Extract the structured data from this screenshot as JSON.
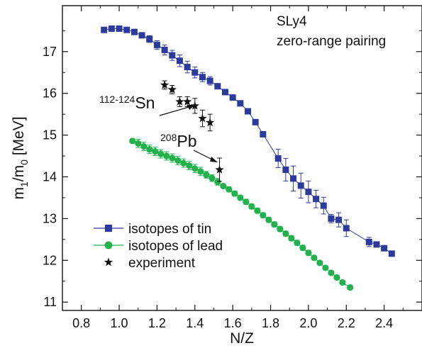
{
  "chart_data": {
    "type": "scatter",
    "xlabel": "N/Z",
    "ylabel_main": "m",
    "ylabel_sub1": "1",
    "ylabel_slash": "/m",
    "ylabel_sub0": "0",
    "ylabel_unit": " [MeV]",
    "xlim": [
      0.7,
      2.6
    ],
    "ylim": [
      10.8,
      18.1
    ],
    "xticks": [
      0.8,
      1.0,
      1.2,
      1.4,
      1.6,
      1.8,
      2.0,
      2.2,
      2.4
    ],
    "xtick_labels": [
      "0.8",
      "1.0",
      "1.2",
      "1.4",
      "1.6",
      "1.8",
      "2.0",
      "2.2",
      "2.4"
    ],
    "yticks": [
      11,
      12,
      13,
      14,
      15,
      16,
      17
    ],
    "ytick_labels": [
      "11",
      "12",
      "13",
      "14",
      "15",
      "16",
      "17"
    ],
    "annotations": {
      "model_line1": "SLy4",
      "model_line2": "zero-range pairing",
      "sn_sup": "112-124",
      "sn_label": "Sn",
      "pb_sup": "208",
      "pb_label": "Pb"
    },
    "series": [
      {
        "name": "isotopes of tin",
        "color": "#2b3a9c",
        "marker": "square",
        "points": [
          [
            0.92,
            17.52,
            0.06
          ],
          [
            0.96,
            17.55,
            0.05
          ],
          [
            1.0,
            17.55,
            0.05
          ],
          [
            1.04,
            17.52,
            0.05
          ],
          [
            1.08,
            17.47,
            0.05
          ],
          [
            1.12,
            17.39,
            0.06
          ],
          [
            1.16,
            17.3,
            0.08
          ],
          [
            1.2,
            17.16,
            0.1
          ],
          [
            1.24,
            17.04,
            0.12
          ],
          [
            1.28,
            16.91,
            0.12
          ],
          [
            1.32,
            16.78,
            0.14
          ],
          [
            1.36,
            16.63,
            0.14
          ],
          [
            1.4,
            16.5,
            0.13
          ],
          [
            1.44,
            16.39,
            0.11
          ],
          [
            1.48,
            16.3,
            0.1
          ],
          [
            1.52,
            16.17,
            0.06
          ],
          [
            1.56,
            16.03,
            0.05
          ],
          [
            1.6,
            15.9,
            0.05
          ],
          [
            1.64,
            15.76,
            0.05
          ],
          [
            1.68,
            15.57,
            0.05
          ],
          [
            1.72,
            15.31,
            0.05
          ],
          [
            1.76,
            15.02,
            0.05
          ],
          [
            1.84,
            14.44,
            0.22
          ],
          [
            1.88,
            14.17,
            0.27
          ],
          [
            1.92,
            13.96,
            0.3
          ],
          [
            1.96,
            13.79,
            0.3
          ],
          [
            2.0,
            13.64,
            0.26
          ],
          [
            2.04,
            13.47,
            0.21
          ],
          [
            2.08,
            13.31,
            0.2
          ],
          [
            2.12,
            13.0,
            0.1
          ],
          [
            2.16,
            12.97,
            0.17
          ],
          [
            2.2,
            12.77,
            0.2
          ],
          [
            2.32,
            12.44,
            0.11
          ],
          [
            2.36,
            12.38,
            0.06
          ],
          [
            2.4,
            12.29,
            0.05
          ],
          [
            2.44,
            12.16,
            0.05
          ]
        ]
      },
      {
        "name": "isotopes of lead",
        "color": "#22b14c",
        "marker": "circle",
        "points": [
          [
            1.07,
            14.86,
            0.05
          ],
          [
            1.1,
            14.8,
            0.1
          ],
          [
            1.13,
            14.73,
            0.1
          ],
          [
            1.16,
            14.66,
            0.1
          ],
          [
            1.19,
            14.61,
            0.1
          ],
          [
            1.22,
            14.55,
            0.1
          ],
          [
            1.25,
            14.5,
            0.1
          ],
          [
            1.28,
            14.45,
            0.1
          ],
          [
            1.31,
            14.39,
            0.1
          ],
          [
            1.34,
            14.33,
            0.1
          ],
          [
            1.37,
            14.27,
            0.1
          ],
          [
            1.4,
            14.2,
            0.1
          ],
          [
            1.43,
            14.13,
            0.1
          ],
          [
            1.46,
            14.05,
            0.08
          ],
          [
            1.49,
            13.97,
            0.08
          ],
          [
            1.52,
            13.88,
            0.08
          ],
          [
            1.55,
            13.78,
            0.05
          ],
          [
            1.58,
            13.7,
            0.06
          ],
          [
            1.61,
            13.6,
            0.06
          ],
          [
            1.64,
            13.5,
            0.06
          ],
          [
            1.67,
            13.4,
            0.06
          ],
          [
            1.7,
            13.29,
            0.06
          ],
          [
            1.73,
            13.19,
            0.06
          ],
          [
            1.76,
            13.08,
            0.06
          ],
          [
            1.79,
            12.97,
            0.06
          ],
          [
            1.82,
            12.86,
            0.06
          ],
          [
            1.85,
            12.75,
            0.06
          ],
          [
            1.88,
            12.64,
            0.06
          ],
          [
            1.91,
            12.53,
            0.06
          ],
          [
            1.94,
            12.42,
            0.06
          ],
          [
            1.97,
            12.3,
            0.06
          ],
          [
            2.0,
            12.18,
            0.06
          ],
          [
            2.03,
            12.06,
            0.05
          ],
          [
            2.06,
            11.94,
            0.05
          ],
          [
            2.09,
            11.82,
            0.05
          ],
          [
            2.12,
            11.7,
            0.05
          ],
          [
            2.15,
            11.59,
            0.05
          ],
          [
            2.18,
            11.47,
            0.05
          ],
          [
            2.22,
            11.35,
            0.05
          ]
        ]
      },
      {
        "name": "experiment",
        "color": "#111111",
        "marker": "star",
        "points": [
          [
            1.24,
            16.2,
            0.1
          ],
          [
            1.28,
            16.09,
            0.1
          ],
          [
            1.32,
            15.8,
            0.12
          ],
          [
            1.36,
            15.8,
            0.12
          ],
          [
            1.4,
            15.7,
            0.18
          ],
          [
            1.44,
            15.4,
            0.2
          ],
          [
            1.48,
            15.3,
            0.2
          ],
          [
            1.53,
            14.17,
            0.28
          ]
        ]
      }
    ]
  }
}
